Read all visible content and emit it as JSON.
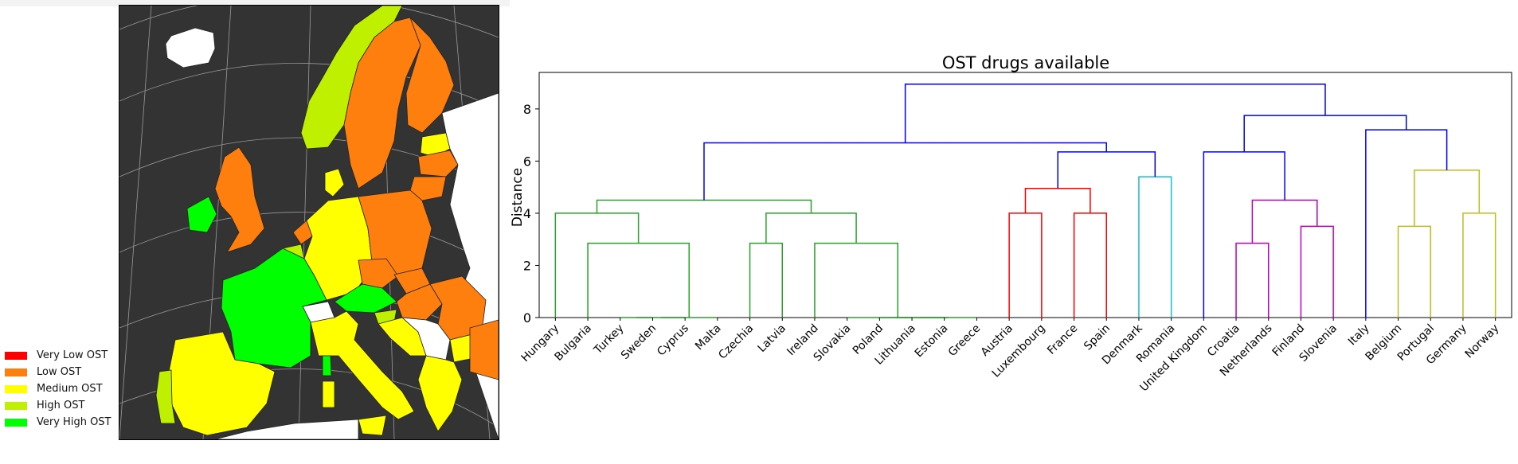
{
  "legend": {
    "items": [
      {
        "label": "Very Low OST",
        "color": "#ff0000"
      },
      {
        "label": "Low OST",
        "color": "#ff7f0e"
      },
      {
        "label": "Medium OST",
        "color": "#ffff00"
      },
      {
        "label": "High OST",
        "color": "#bff000"
      },
      {
        "label": "Very High OST",
        "color": "#00ff00"
      }
    ]
  },
  "map": {
    "colors": {
      "sea": "#333333",
      "land_other": "#ffffff"
    }
  },
  "chart_data": {
    "type": "dendrogram",
    "title": "OST drugs available",
    "xlabel": "",
    "ylabel": "Distance",
    "ylim": [
      0,
      9.4
    ],
    "yticks": [
      0,
      2,
      4,
      6,
      8
    ],
    "leaves": [
      "Hungary",
      "Bulgaria",
      "Turkey",
      "Sweden",
      "Cyprus",
      "Malta",
      "Czechia",
      "Latvia",
      "Ireland",
      "Slovakia",
      "Poland",
      "Lithuania",
      "Estonia",
      "Greece",
      "Austria",
      "Luxembourg",
      "France",
      "Spain",
      "Denmark",
      "Romania",
      "United Kingdom",
      "Croatia",
      "Netherlands",
      "Finland",
      "Slovenia",
      "Italy",
      "Belgium",
      "Portugal",
      "Germany",
      "Norway"
    ],
    "links": [
      {
        "left": 2,
        "right": 3,
        "height": 0,
        "color": "#2ca02c"
      },
      {
        "left": 30,
        "right": 4,
        "height": 0,
        "color": "#2ca02c"
      },
      {
        "left": 31,
        "right": 5,
        "height": 0,
        "color": "#2ca02c"
      },
      {
        "left": 1,
        "right": 32,
        "height": 2.85,
        "color": "#2ca02c"
      },
      {
        "left": 0,
        "right": 33,
        "height": 4.0,
        "color": "#2ca02c"
      },
      {
        "left": 6,
        "right": 7,
        "height": 2.85,
        "color": "#2ca02c"
      },
      {
        "left": 10,
        "right": 11,
        "height": 0,
        "color": "#2ca02c"
      },
      {
        "left": 36,
        "right": 12,
        "height": 0,
        "color": "#2ca02c"
      },
      {
        "left": 37,
        "right": 13,
        "height": 0,
        "color": "#2ca02c"
      },
      {
        "left": 9,
        "right": 38,
        "height": 0,
        "color": "#2ca02c"
      },
      {
        "left": 8,
        "right": 39,
        "height": 2.85,
        "color": "#2ca02c"
      },
      {
        "left": 35,
        "right": 40,
        "height": 4.0,
        "color": "#2ca02c"
      },
      {
        "left": 34,
        "right": 41,
        "height": 4.5,
        "color": "#2ca02c"
      },
      {
        "left": 14,
        "right": 15,
        "height": 4.0,
        "color": "#ff0000"
      },
      {
        "left": 16,
        "right": 17,
        "height": 4.0,
        "color": "#ff0000"
      },
      {
        "left": 43,
        "right": 44,
        "height": 4.95,
        "color": "#ff0000"
      },
      {
        "left": 18,
        "right": 19,
        "height": 5.4,
        "color": "#17becf"
      },
      {
        "left": 45,
        "right": 46,
        "height": 6.35,
        "color": "#0000ff"
      },
      {
        "left": 42,
        "right": 47,
        "height": 6.7,
        "color": "#0000ff"
      },
      {
        "left": 21,
        "right": 22,
        "height": 2.85,
        "color": "#bf00bf"
      },
      {
        "left": 23,
        "right": 24,
        "height": 3.5,
        "color": "#bf00bf"
      },
      {
        "left": 49,
        "right": 50,
        "height": 4.5,
        "color": "#bf00bf"
      },
      {
        "left": 20,
        "right": 51,
        "height": 6.35,
        "color": "#0000ff"
      },
      {
        "left": 26,
        "right": 27,
        "height": 3.5,
        "color": "#bcbd22"
      },
      {
        "left": 28,
        "right": 29,
        "height": 4.0,
        "color": "#bcbd22"
      },
      {
        "left": 53,
        "right": 54,
        "height": 5.65,
        "color": "#bcbd22"
      },
      {
        "left": 25,
        "right": 55,
        "height": 7.2,
        "color": "#0000ff"
      },
      {
        "left": 52,
        "right": 56,
        "height": 7.75,
        "color": "#0000ff"
      },
      {
        "left": 48,
        "right": 57,
        "height": 8.95,
        "color": "#0000ff"
      }
    ],
    "grid": false
  }
}
